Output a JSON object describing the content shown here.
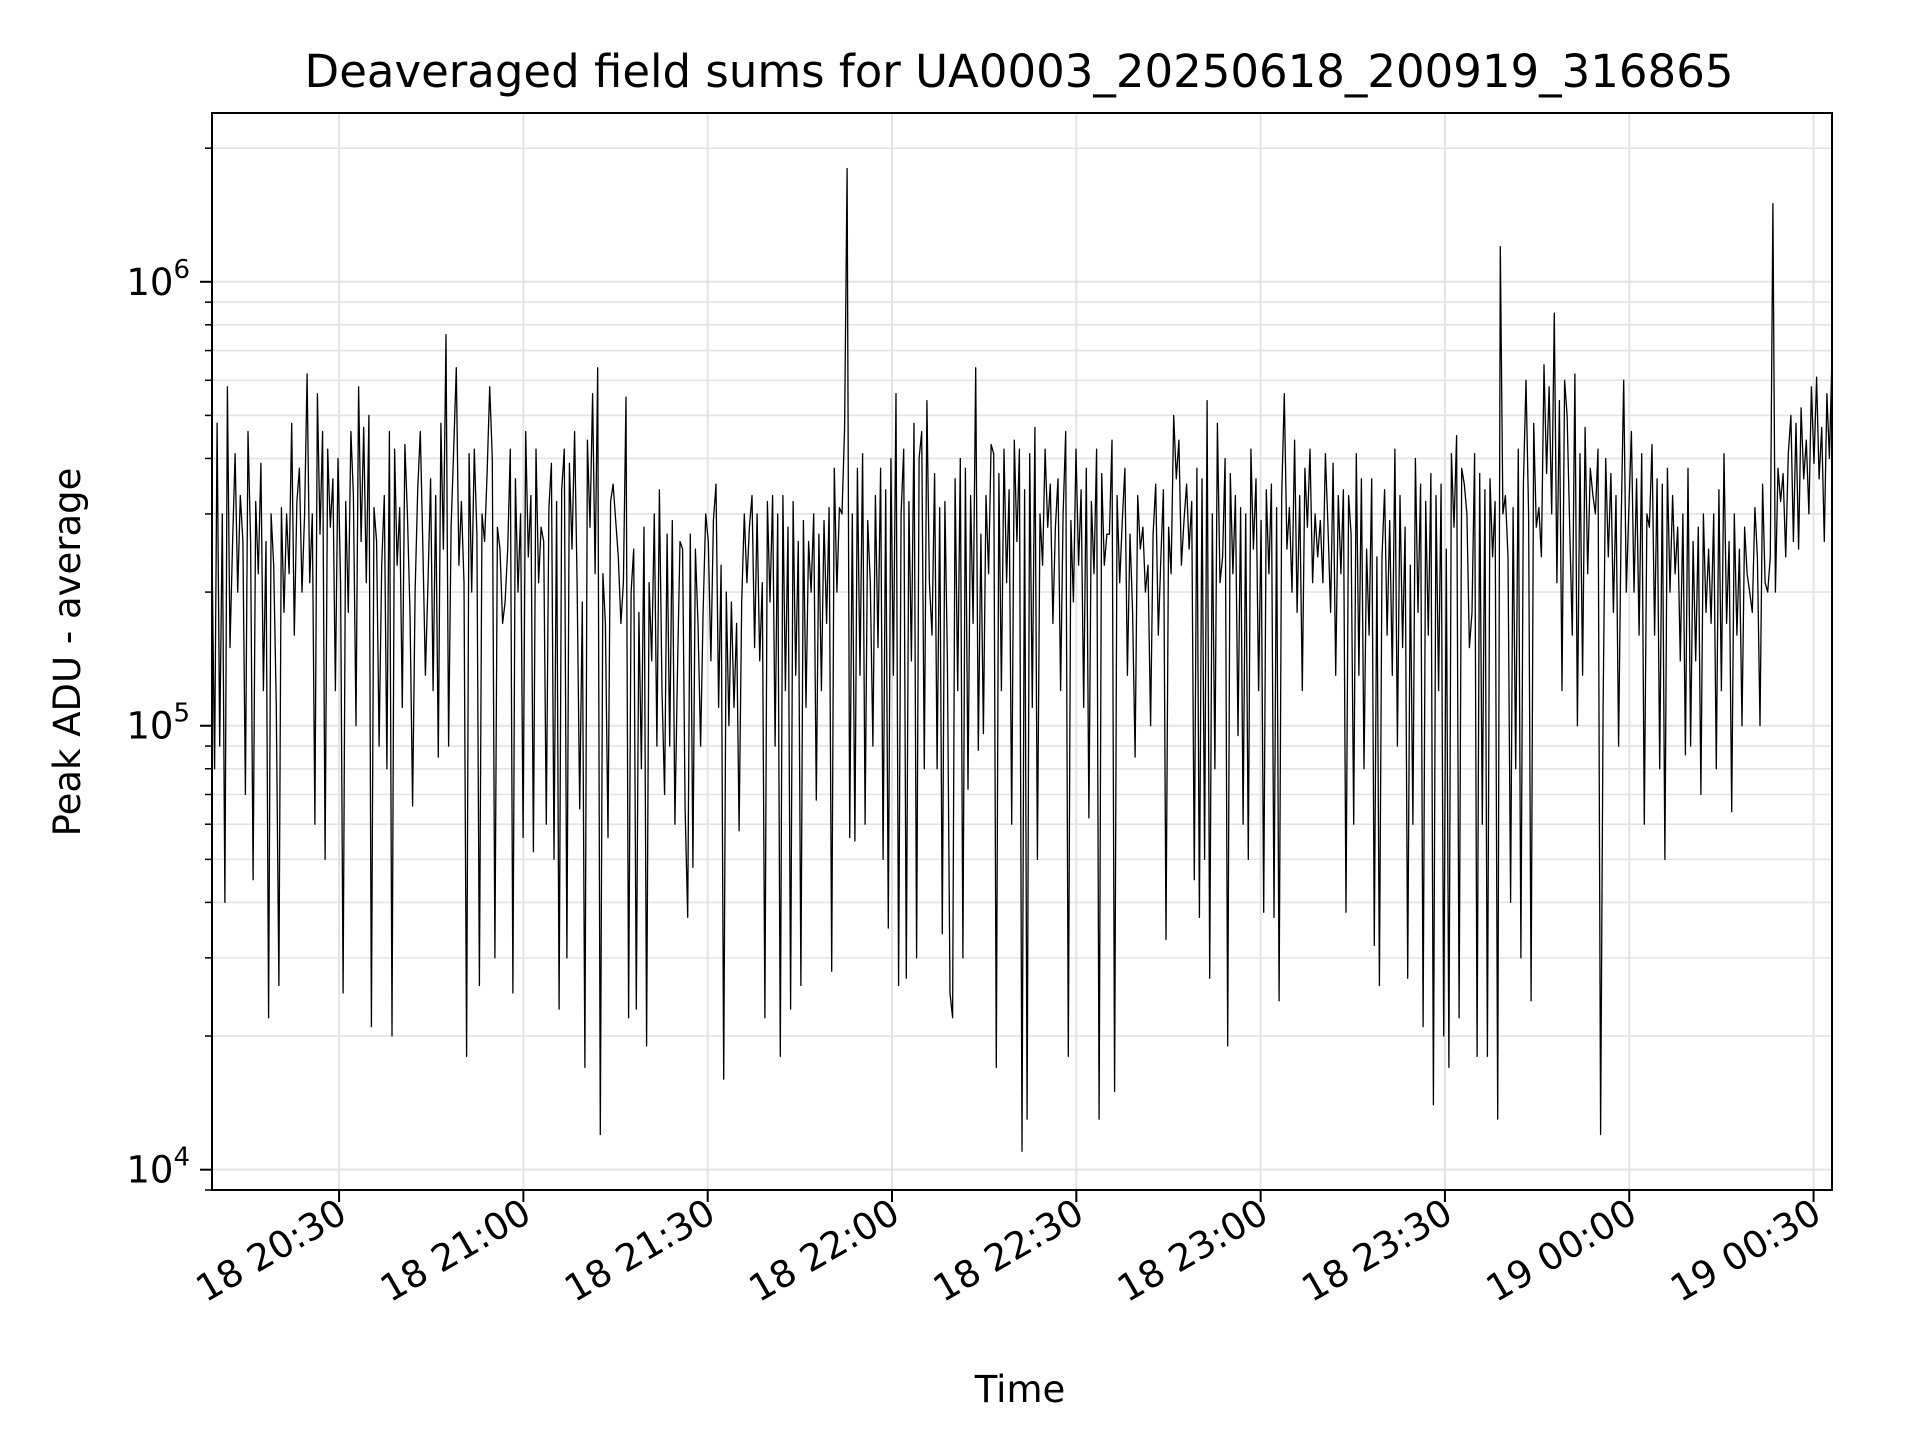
{
  "chart_data": {
    "type": "line",
    "title": "Deaveraged field sums for UA0003_20250618_200919_316865",
    "xlabel": "Time",
    "ylabel": "Peak ADU - average",
    "yscale": "log",
    "xlim": [
      "2025-06-18 20:09:19",
      "2025-06-19 00:33:00"
    ],
    "ylim": [
      9000,
      2400000
    ],
    "x_ticks": [
      "18 20:30",
      "18 21:00",
      "18 21:30",
      "18 22:00",
      "18 22:30",
      "18 23:00",
      "18 23:30",
      "19 00:00",
      "19 00:30"
    ],
    "y_ticks": [
      {
        "base": "10",
        "exp": "4",
        "value": 10000
      },
      {
        "base": "10",
        "exp": "5",
        "value": 100000
      },
      {
        "base": "10",
        "exp": "6",
        "value": 1000000
      }
    ],
    "grid": true,
    "line_color": "#000000",
    "series": [
      {
        "x_start": "2025-06-18 20:09:19",
        "x_end": "2025-06-19 00:33:00",
        "values": [
          250000,
          80000,
          480000,
          90000,
          300000,
          40000,
          580000,
          150000,
          260000,
          410000,
          200000,
          330000,
          260000,
          70000,
          460000,
          260000,
          45000,
          320000,
          220000,
          390000,
          120000,
          260000,
          22000,
          300000,
          230000,
          110000,
          26000,
          310000,
          180000,
          300000,
          220000,
          480000,
          160000,
          320000,
          380000,
          200000,
          300000,
          620000,
          210000,
          300000,
          60000,
          560000,
          270000,
          460000,
          50000,
          420000,
          280000,
          360000,
          120000,
          400000,
          210000,
          25000,
          320000,
          180000,
          460000,
          330000,
          100000,
          580000,
          260000,
          470000,
          210000,
          500000,
          21000,
          310000,
          260000,
          90000,
          230000,
          330000,
          80000,
          460000,
          20000,
          420000,
          230000,
          310000,
          110000,
          430000,
          300000,
          180000,
          66000,
          200000,
          340000,
          460000,
          250000,
          130000,
          210000,
          360000,
          120000,
          330000,
          85000,
          480000,
          250000,
          760000,
          90000,
          280000,
          420000,
          640000,
          230000,
          320000,
          210000,
          18000,
          410000,
          200000,
          420000,
          270000,
          26000,
          300000,
          260000,
          370000,
          580000,
          400000,
          30000,
          280000,
          250000,
          170000,
          190000,
          250000,
          420000,
          25000,
          360000,
          200000,
          300000,
          56000,
          460000,
          240000,
          330000,
          52000,
          420000,
          210000,
          280000,
          260000,
          60000,
          310000,
          390000,
          50000,
          320000,
          23000,
          340000,
          420000,
          30000,
          390000,
          250000,
          460000,
          210000,
          65000,
          190000,
          17000,
          440000,
          280000,
          560000,
          220000,
          640000,
          12000,
          220000,
          170000,
          56000,
          320000,
          350000,
          290000,
          240000,
          170000,
          210000,
          550000,
          22000,
          200000,
          250000,
          23000,
          180000,
          80000,
          280000,
          19000,
          210000,
          140000,
          300000,
          90000,
          340000,
          120000,
          70000,
          270000,
          90000,
          290000,
          60000,
          130000,
          260000,
          250000,
          65000,
          37000,
          270000,
          48000,
          250000,
          170000,
          90000,
          180000,
          300000,
          260000,
          140000,
          290000,
          350000,
          110000,
          230000,
          16000,
          200000,
          100000,
          190000,
          110000,
          170000,
          58000,
          190000,
          300000,
          210000,
          280000,
          330000,
          150000,
          300000,
          140000,
          210000,
          22000,
          320000,
          190000,
          330000,
          90000,
          300000,
          18000,
          330000,
          120000,
          280000,
          23000,
          320000,
          130000,
          260000,
          26000,
          290000,
          110000,
          260000,
          200000,
          300000,
          68000,
          270000,
          120000,
          290000,
          170000,
          310000,
          28000,
          380000,
          200000,
          310000,
          300000,
          470000,
          1800000,
          56000,
          300000,
          55000,
          380000,
          130000,
          410000,
          60000,
          290000,
          210000,
          90000,
          330000,
          150000,
          380000,
          50000,
          340000,
          35000,
          400000,
          130000,
          560000,
          26000,
          300000,
          420000,
          27000,
          320000,
          140000,
          480000,
          30000,
          400000,
          460000,
          80000,
          540000,
          210000,
          160000,
          370000,
          80000,
          310000,
          34000,
          320000,
          140000,
          25000,
          22000,
          360000,
          120000,
          400000,
          30000,
          380000,
          72000,
          330000,
          170000,
          640000,
          88000,
          270000,
          96000,
          330000,
          220000,
          430000,
          410000,
          17000,
          370000,
          120000,
          420000,
          210000,
          340000,
          60000,
          440000,
          260000,
          420000,
          11000,
          340000,
          13000,
          410000,
          110000,
          470000,
          50000,
          300000,
          230000,
          420000,
          280000,
          350000,
          170000,
          280000,
          360000,
          120000,
          300000,
          460000,
          18000,
          290000,
          190000,
          420000,
          230000,
          340000,
          110000,
          380000,
          62000,
          320000,
          220000,
          420000,
          13000,
          370000,
          230000,
          270000,
          270000,
          440000,
          15000,
          330000,
          210000,
          290000,
          380000,
          130000,
          270000,
          180000,
          85000,
          330000,
          250000,
          280000,
          200000,
          230000,
          100000,
          270000,
          350000,
          160000,
          240000,
          340000,
          33000,
          280000,
          220000,
          500000,
          360000,
          440000,
          230000,
          290000,
          350000,
          250000,
          320000,
          45000,
          380000,
          37000,
          360000,
          50000,
          540000,
          27000,
          300000,
          80000,
          480000,
          210000,
          240000,
          400000,
          19000,
          370000,
          220000,
          330000,
          95000,
          310000,
          60000,
          300000,
          50000,
          420000,
          250000,
          360000,
          120000,
          290000,
          38000,
          340000,
          220000,
          350000,
          37000,
          310000,
          24000,
          330000,
          560000,
          250000,
          310000,
          200000,
          440000,
          180000,
          330000,
          120000,
          380000,
          280000,
          420000,
          210000,
          300000,
          240000,
          290000,
          210000,
          410000,
          280000,
          180000,
          390000,
          130000,
          330000,
          220000,
          340000,
          38000,
          330000,
          270000,
          60000,
          410000,
          130000,
          360000,
          80000,
          250000,
          160000,
          360000,
          32000,
          240000,
          26000,
          240000,
          340000,
          160000,
          290000,
          130000,
          420000,
          90000,
          330000,
          150000,
          280000,
          27000,
          230000,
          60000,
          400000,
          180000,
          350000,
          21000,
          320000,
          160000,
          370000,
          14000,
          330000,
          120000,
          350000,
          20000,
          250000,
          17000,
          410000,
          280000,
          450000,
          22000,
          380000,
          350000,
          300000,
          150000,
          180000,
          410000,
          18000,
          370000,
          60000,
          340000,
          18000,
          360000,
          240000,
          320000,
          13000,
          1200000,
          300000,
          330000,
          240000,
          40000,
          310000,
          80000,
          420000,
          30000,
          350000,
          600000,
          300000,
          24000,
          480000,
          280000,
          310000,
          240000,
          650000,
          370000,
          580000,
          300000,
          850000,
          210000,
          540000,
          120000,
          600000,
          500000,
          280000,
          160000,
          620000,
          100000,
          410000,
          130000,
          470000,
          220000,
          380000,
          330000,
          300000,
          420000,
          12000,
          110000,
          400000,
          240000,
          370000,
          180000,
          330000,
          90000,
          280000,
          600000,
          200000,
          310000,
          460000,
          200000,
          360000,
          160000,
          410000,
          60000,
          300000,
          280000,
          430000,
          160000,
          360000,
          80000,
          350000,
          50000,
          380000,
          200000,
          330000,
          220000,
          280000,
          140000,
          300000,
          86000,
          380000,
          90000,
          260000,
          140000,
          280000,
          70000,
          300000,
          180000,
          250000,
          170000,
          300000,
          80000,
          340000,
          120000,
          410000,
          170000,
          260000,
          64000,
          300000,
          160000,
          250000,
          100000,
          280000,
          220000,
          200000,
          180000,
          310000,
          240000,
          100000,
          350000,
          210000,
          200000,
          240000,
          1500000,
          200000,
          380000,
          320000,
          370000,
          240000,
          410000,
          500000,
          260000,
          480000,
          250000,
          520000,
          360000,
          440000,
          300000,
          580000,
          390000,
          610000,
          360000,
          470000,
          260000,
          560000,
          400000,
          680000
        ]
      }
    ]
  }
}
